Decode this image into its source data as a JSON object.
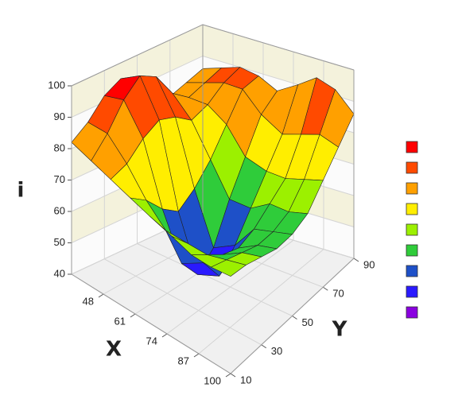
{
  "chart_data": {
    "type": "surface",
    "x_label": "X",
    "y_label": "Y",
    "z_label": "i",
    "x": [
      35,
      43,
      51,
      59,
      67,
      76,
      84,
      92,
      100
    ],
    "y": [
      10,
      20,
      30,
      40,
      50,
      60,
      70,
      80,
      90
    ],
    "z": [
      [
        82,
        86,
        92,
        95,
        92,
        85,
        82,
        84,
        86
      ],
      [
        80,
        86,
        94,
        99,
        96,
        88,
        84,
        86,
        88
      ],
      [
        78,
        80,
        85,
        88,
        86,
        82,
        84,
        88,
        90
      ],
      [
        76,
        72,
        66,
        62,
        66,
        72,
        80,
        88,
        89
      ],
      [
        74,
        66,
        52,
        45,
        50,
        62,
        72,
        82,
        86
      ],
      [
        72,
        66,
        56,
        48,
        54,
        62,
        70,
        78,
        90
      ],
      [
        70,
        66,
        62,
        60,
        62,
        66,
        70,
        80,
        94
      ],
      [
        70,
        68,
        66,
        64,
        64,
        66,
        72,
        82,
        92
      ],
      [
        71,
        70,
        68,
        66,
        66,
        68,
        74,
        80,
        86
      ]
    ],
    "xlim": [
      35,
      100
    ],
    "xticks": [
      48,
      61,
      74,
      87,
      100
    ],
    "ylim": [
      10,
      90
    ],
    "yticks": [
      10,
      30,
      50,
      70,
      90
    ],
    "zlim": [
      40,
      100
    ],
    "zticks": [
      40,
      50,
      60,
      70,
      80,
      90,
      100
    ],
    "colors": [
      "#ff0000",
      "#ff4a00",
      "#ffa000",
      "#ffee00",
      "#9cf000",
      "#2fcc3a",
      "#1e50c8",
      "#2a1aff",
      "#8a00e0"
    ]
  }
}
